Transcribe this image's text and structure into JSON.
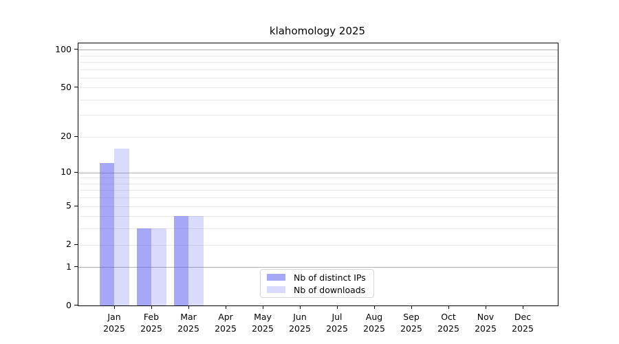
{
  "title": "klahomology 2025",
  "legend": {
    "items": [
      {
        "label": "Nb of distinct IPs",
        "color": "rgba(80,80,240,0.5)"
      },
      {
        "label": "Nb of downloads",
        "color": "rgba(80,80,240,0.21)"
      }
    ]
  },
  "colors": {
    "bar_distinct_ips": "rgba(80,80,240,0.5)",
    "bar_downloads": "rgba(80,80,240,0.21)",
    "grid_major": "#b0b0b0",
    "grid_minor": "#eaeaea",
    "spine": "#000000"
  },
  "chart_data": {
    "type": "bar",
    "title": "klahomology 2025",
    "categories": [
      "Jan 2025",
      "Feb 2025",
      "Mar 2025",
      "Apr 2025",
      "May 2025",
      "Jun 2025",
      "Jul 2025",
      "Aug 2025",
      "Sep 2025",
      "Oct 2025",
      "Nov 2025",
      "Dec 2025"
    ],
    "series": [
      {
        "name": "Nb of distinct IPs",
        "values": [
          12,
          3,
          4,
          0,
          0,
          0,
          0,
          0,
          0,
          0,
          0,
          0
        ]
      },
      {
        "name": "Nb of downloads",
        "values": [
          16,
          3,
          4,
          0,
          0,
          0,
          0,
          0,
          0,
          0,
          0,
          0
        ]
      }
    ],
    "yscale": "log10(value+1)",
    "ylim": [
      0,
      112
    ],
    "yticks": [
      0,
      1,
      2,
      5,
      10,
      20,
      50,
      100
    ],
    "gridlines_major": [
      1,
      10,
      100
    ],
    "gridlines_minor": [
      2,
      3,
      4,
      5,
      6,
      7,
      8,
      9,
      20,
      30,
      40,
      50,
      60,
      70,
      80,
      90
    ],
    "grid": "horizontal",
    "legend_position": "lower center"
  }
}
